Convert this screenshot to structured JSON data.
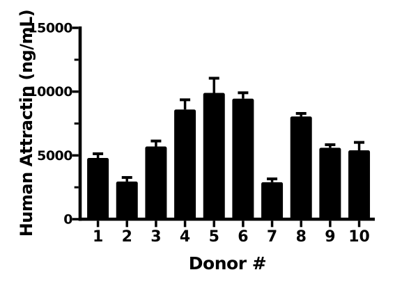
{
  "figure": {
    "background": "#ffffff",
    "ink_color": "#000000"
  },
  "chart_data": {
    "type": "bar",
    "title": "",
    "xlabel": "Donor #",
    "ylabel": "Human Attractin (ng/mL)",
    "categories": [
      "1",
      "2",
      "3",
      "4",
      "5",
      "6",
      "7",
      "8",
      "9",
      "10"
    ],
    "values": [
      4800,
      2950,
      5700,
      8600,
      9900,
      9450,
      2900,
      8050,
      5600,
      5400
    ],
    "errors_up": [
      330,
      320,
      430,
      760,
      1150,
      460,
      260,
      240,
      240,
      620
    ],
    "error_bars": "upper SD with caps",
    "ylim": [
      0,
      15000
    ],
    "yticks_major": [
      0,
      5000,
      10000,
      15000
    ],
    "ytick_labels": [
      "0",
      "5000",
      "10000",
      "15000"
    ],
    "yticks_minor": [
      2500,
      7500,
      12500
    ],
    "grid": false,
    "legend": false,
    "bar_color": "#000000",
    "axis_color": "#000000"
  }
}
